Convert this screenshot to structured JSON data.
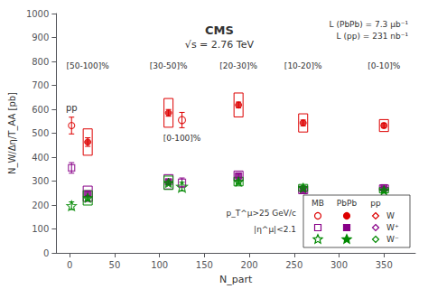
{
  "chart_data": {
    "type": "scatter",
    "x_label": "N_part",
    "y_label": "N_W/Δη/T_AA [pb]",
    "xlim": [
      -15,
      385
    ],
    "xticks": [
      0,
      50,
      100,
      150,
      200,
      250,
      300,
      350
    ],
    "ylim": [
      0,
      1000
    ],
    "yticks": [
      0,
      100,
      200,
      300,
      400,
      500,
      600,
      700,
      800,
      900,
      1000
    ],
    "grid": false,
    "legend": "lower right",
    "legend_header": [
      "MB",
      "PbPb",
      "pp"
    ],
    "centrality_labels": [
      "[50-100]%",
      "[30-50]%",
      "[20-30]%",
      "[10-20]%",
      "[0-10]%"
    ],
    "mb_label": "[0-100]%",
    "pp_label": "pp",
    "annotations": [
      "CMS",
      "√s = 2.76 TeV",
      "L (PbPb) = 7.3 μb⁻¹",
      "L (pp) = 231 nb⁻¹",
      "p_T^μ>25 GeV/c",
      "|η^μ|<2.1"
    ],
    "series": [
      {
        "name": "W",
        "color": "#dd0000",
        "marker": "circle",
        "pbpb": {
          "x": [
            20,
            110,
            188,
            260,
            350
          ],
          "values": [
            463,
            585,
            618,
            543,
            532
          ],
          "stat_err": [
            18,
            14,
            12,
            12,
            10
          ],
          "syst_err": [
            55,
            60,
            50,
            38,
            25
          ]
        },
        "mb": {
          "x": [
            125
          ],
          "values": [
            555
          ],
          "error": [
            32
          ]
        },
        "pp": {
          "x": [
            2
          ],
          "values": [
            532
          ],
          "error": [
            35
          ]
        }
      },
      {
        "name": "W⁺",
        "color": "#880088",
        "marker": "square",
        "pbpb": {
          "x": [
            20,
            110,
            188,
            260,
            350
          ],
          "values": [
            247,
            297,
            322,
            263,
            272
          ],
          "stat_err": [
            10,
            9,
            8,
            8,
            6
          ],
          "syst_err": [
            32,
            30,
            20,
            16,
            12
          ]
        },
        "mb": {
          "x": [
            125
          ],
          "values": [
            293
          ],
          "error": [
            20
          ]
        },
        "pp": {
          "x": [
            2
          ],
          "values": [
            355
          ],
          "error": [
            22
          ]
        }
      },
      {
        "name": "W⁻",
        "color": "#008800",
        "marker": "star",
        "pbpb": {
          "x": [
            20,
            110,
            188,
            260,
            350
          ],
          "values": [
            230,
            293,
            298,
            272,
            262
          ],
          "stat_err": [
            10,
            9,
            8,
            8,
            6
          ],
          "syst_err": [
            30,
            28,
            18,
            14,
            11
          ]
        },
        "mb": {
          "x": [
            125
          ],
          "values": [
            277
          ],
          "error": [
            18
          ]
        },
        "pp": {
          "x": [
            2
          ],
          "values": [
            197
          ],
          "error": [
            16
          ]
        }
      }
    ]
  }
}
